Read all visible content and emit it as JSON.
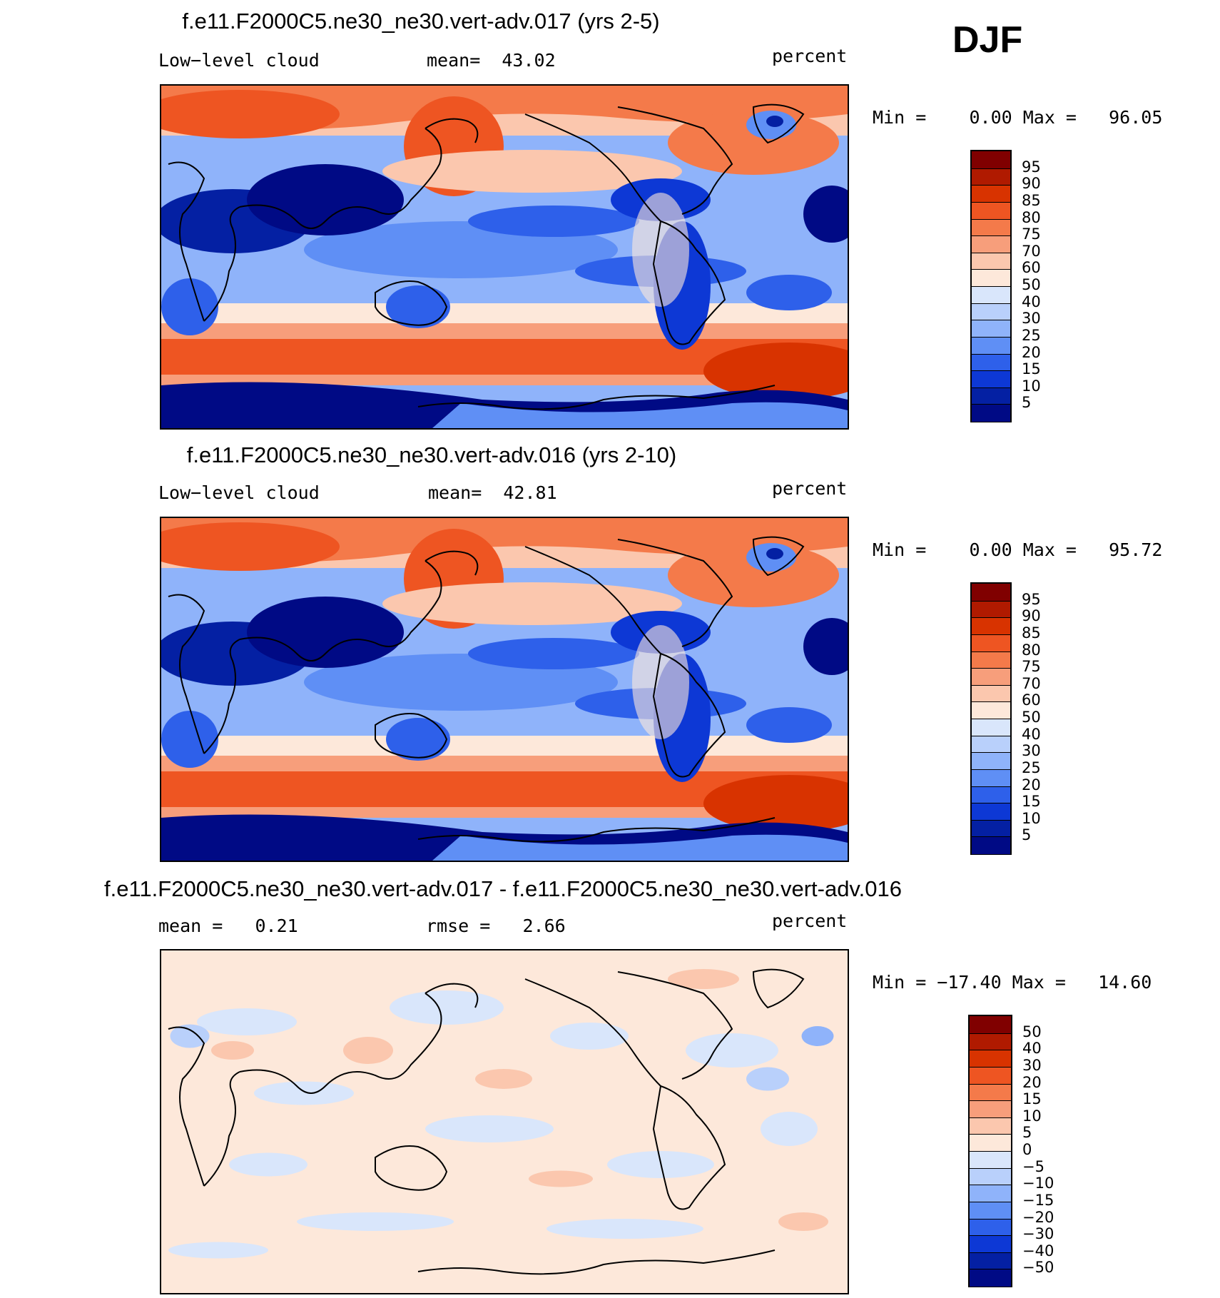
{
  "season": "DJF",
  "chart_data": [
    {
      "type": "heatmap",
      "title": "f.e11.F2000C5.ne30_ne30.vert-adv.017 (yrs 2-5)",
      "left_label": "Low−level cloud",
      "center_label": "mean=  43.02",
      "units": "percent",
      "min_max": "Min =    0.00 Max =   96.05",
      "min": 0.0,
      "max": 96.05,
      "mean": 43.02,
      "contour_levels": [
        "95",
        "90",
        "85",
        "80",
        "75",
        "70",
        "60",
        "50",
        "40",
        "30",
        "25",
        "20",
        "15",
        "10",
        "5"
      ]
    },
    {
      "type": "heatmap",
      "title": "f.e11.F2000C5.ne30_ne30.vert-adv.016 (yrs 2-10)",
      "left_label": "Low−level cloud",
      "center_label": "mean=  42.81",
      "units": "percent",
      "min_max": "Min =    0.00 Max =   95.72",
      "min": 0.0,
      "max": 95.72,
      "mean": 42.81,
      "contour_levels": [
        "95",
        "90",
        "85",
        "80",
        "75",
        "70",
        "60",
        "50",
        "40",
        "30",
        "25",
        "20",
        "15",
        "10",
        "5"
      ]
    },
    {
      "type": "heatmap",
      "title": "f.e11.F2000C5.ne30_ne30.vert-adv.017 - f.e11.F2000C5.ne30_ne30.vert-adv.016",
      "left_label": "mean =   0.21",
      "center_label": "rmse =   2.66",
      "units": "percent",
      "min_max": "Min = −17.40 Max =   14.60",
      "min": -17.4,
      "max": 14.6,
      "mean": 0.21,
      "rmse": 2.66,
      "contour_levels": [
        "50",
        "40",
        "30",
        "20",
        "15",
        "10",
        "5",
        "0",
        "−5",
        "−10",
        "−15",
        "−20",
        "−30",
        "−40",
        "−50"
      ]
    }
  ],
  "palette": {
    "cloud": [
      "#800000",
      "#b01a00",
      "#d83300",
      "#ee5522",
      "#f47a4a",
      "#f79e7b",
      "#fbc7ae",
      "#fde8da",
      "#d9e6fb",
      "#b9d0fb",
      "#8fb3fa",
      "#5f8ff5",
      "#2e60ea",
      "#0d38d5",
      "#0420a3",
      "#000a85"
    ],
    "diff": [
      "#800000",
      "#b01a00",
      "#d83300",
      "#ee5522",
      "#f47a4a",
      "#f79e7b",
      "#fbc7ae",
      "#fde8da",
      "#d9e6fb",
      "#b9d0fb",
      "#8fb3fa",
      "#5f8ff5",
      "#2e60ea",
      "#0d38d5",
      "#0420a3",
      "#000a85"
    ],
    "ocean_high": "#f05a28",
    "ocean_mid": "#f8a883",
    "ocean_low": "#a8c4fa",
    "strato": "#1040d8",
    "deep": "#000a85",
    "coast": "#000000"
  }
}
